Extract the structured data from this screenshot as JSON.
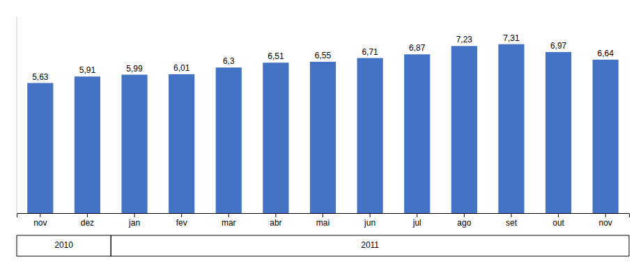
{
  "chart_data": {
    "type": "bar",
    "categories": [
      "nov",
      "dez",
      "jan",
      "fev",
      "mar",
      "abr",
      "mai",
      "jun",
      "jul",
      "ago",
      "set",
      "out",
      "nov"
    ],
    "values": [
      5.63,
      5.91,
      5.99,
      6.01,
      6.3,
      6.51,
      6.55,
      6.71,
      6.87,
      7.23,
      7.31,
      6.97,
      6.64
    ],
    "value_labels": [
      "5,63",
      "5,91",
      "5,99",
      "6,01",
      "6,3",
      "6,51",
      "6,55",
      "6,71",
      "6,87",
      "7,23",
      "7,31",
      "6,97",
      "6,64"
    ],
    "data_labels": true,
    "color": "#4472C4",
    "ylim": [
      0,
      8.5
    ],
    "tick_labels": "x",
    "grid": false,
    "annotations": [
      {
        "text": "2010",
        "span": [
          0,
          1
        ]
      },
      {
        "text": "2011",
        "span": [
          2,
          12
        ]
      }
    ]
  }
}
